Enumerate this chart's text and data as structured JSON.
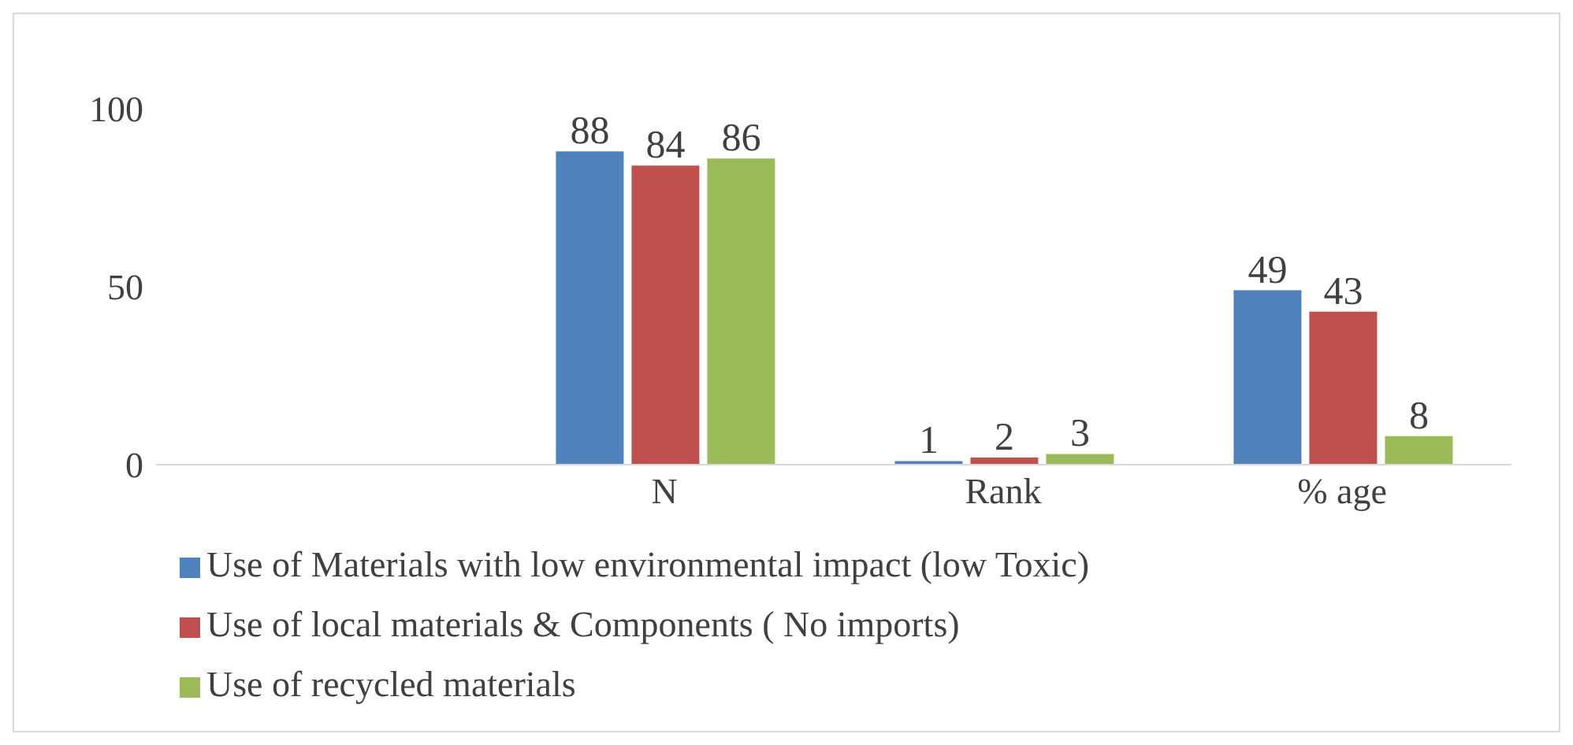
{
  "chart_data": {
    "type": "bar",
    "categories": [
      null,
      "N",
      "Rank",
      "% age"
    ],
    "series": [
      {
        "name": "Use of Materials with low environmental impact (low Toxic)",
        "color": "#4f81bd",
        "values": [
          null,
          88,
          1,
          49
        ]
      },
      {
        "name": "Use of local materials & Components ( No imports)",
        "color": "#c0504d",
        "values": [
          null,
          84,
          2,
          43
        ]
      },
      {
        "name": "Use of recycled materials",
        "color": "#9bbb59",
        "values": [
          null,
          86,
          3,
          8
        ]
      }
    ],
    "ylim": [
      0,
      100
    ],
    "yticks": [
      0,
      50,
      100
    ],
    "grid": false,
    "legend": "bottom",
    "data_labels": true
  }
}
